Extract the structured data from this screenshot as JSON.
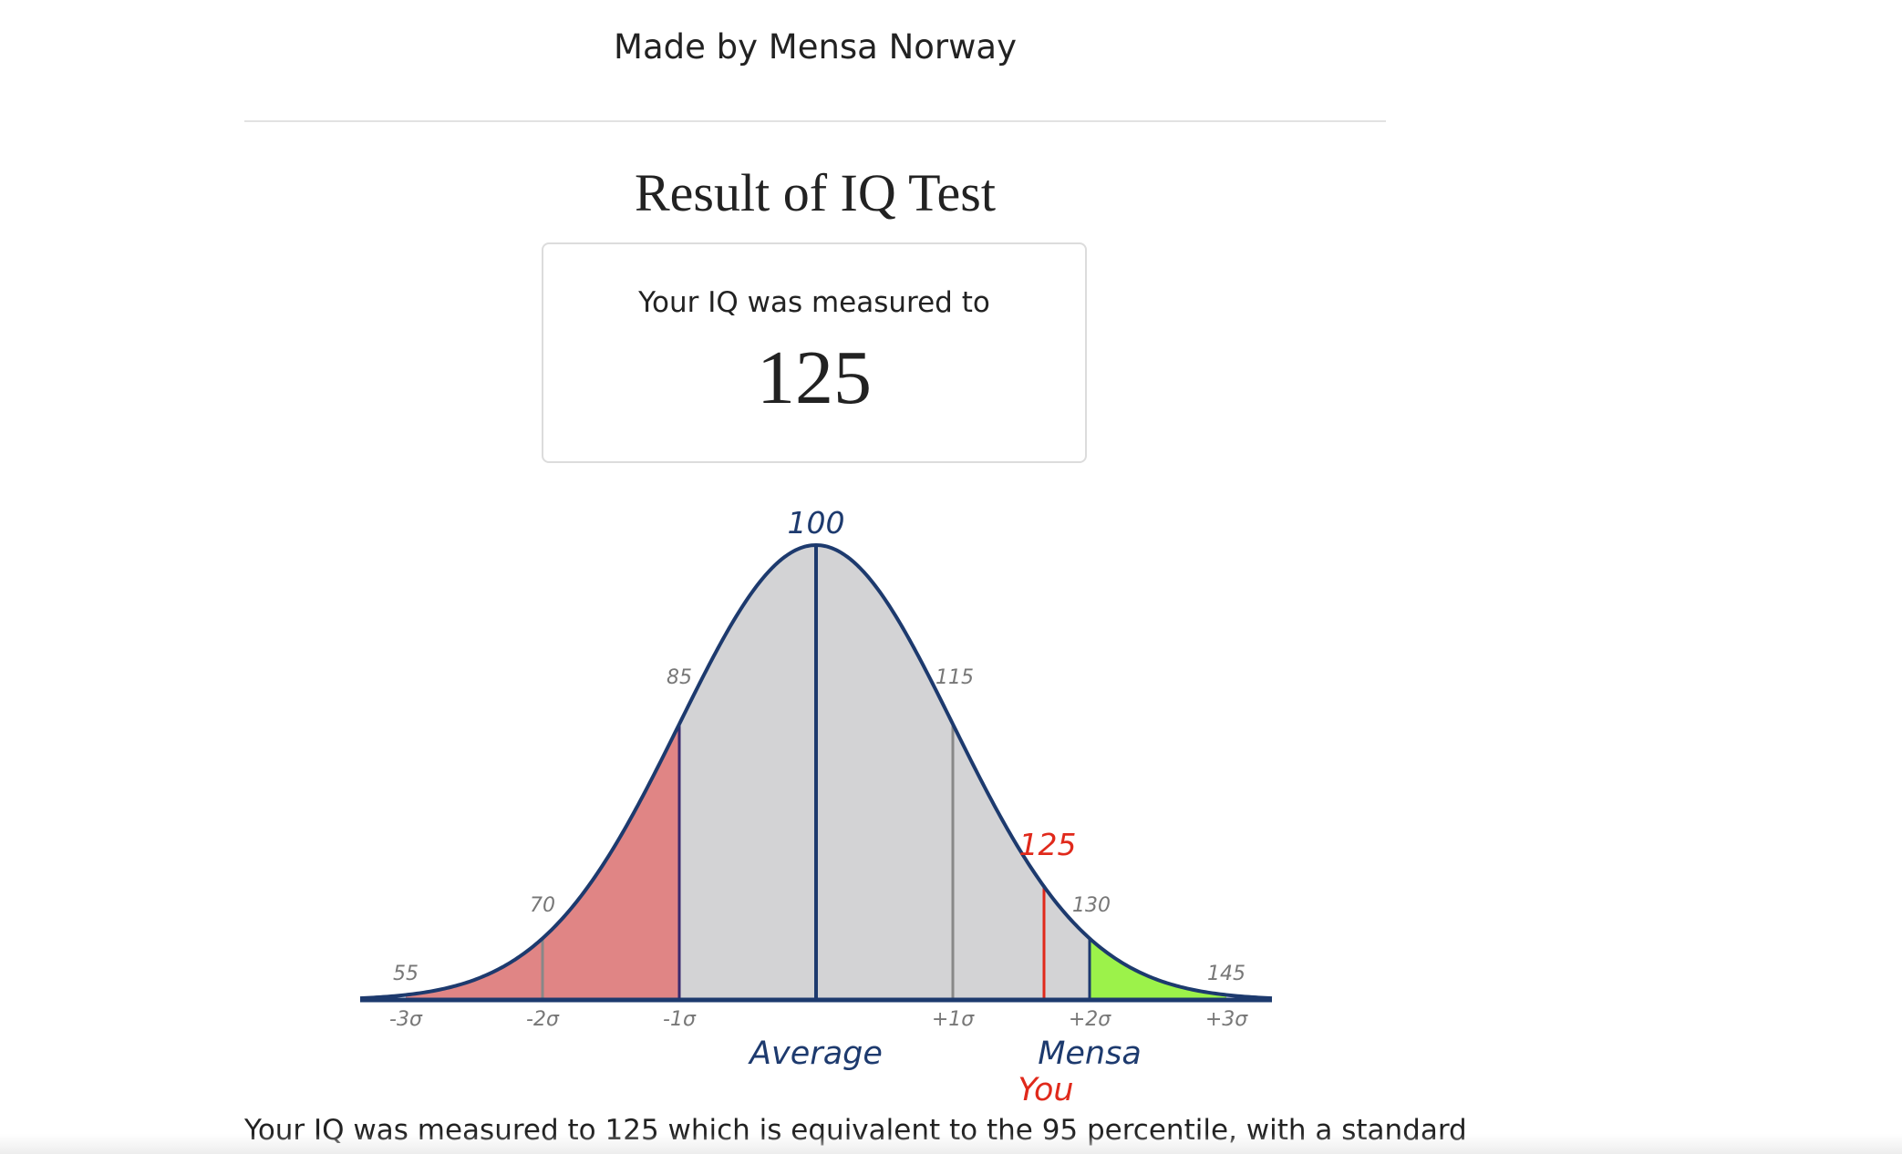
{
  "header": {
    "made_by": "Made by Mensa Norway"
  },
  "result": {
    "title": "Result of IQ Test",
    "measured_label": "Your IQ was measured to",
    "score": "125"
  },
  "summary_text": "Your IQ was measured to 125 which is equivalent to the 95 percentile, with a standard",
  "chart_data": {
    "type": "area",
    "distribution": "normal",
    "mean": 100,
    "sd": 15,
    "x_range": [
      55,
      145
    ],
    "iq_labels": [
      "55",
      "70",
      "85",
      "100",
      "115",
      "130",
      "145"
    ],
    "sigma_labels": [
      "-3σ",
      "-2σ",
      "-1σ",
      "+1σ",
      "+2σ",
      "+3σ"
    ],
    "markers": {
      "average": "Average",
      "mensa": "Mensa",
      "you": "You",
      "you_value": "125"
    },
    "you_iq": 125,
    "mensa_threshold": 130,
    "shaded_regions": [
      {
        "from": 55,
        "to": 85,
        "color": "#e08585"
      },
      {
        "from": 85,
        "to": 130,
        "color": "#d3d3d5"
      },
      {
        "from": 130,
        "to": 145,
        "color": "#9cf24a"
      }
    ],
    "colors": {
      "curve": "#1d3a6e",
      "you": "#e0291b",
      "grey_label": "#777777",
      "gray_line": "#888888",
      "minus1_line": "#3a2a6e"
    }
  }
}
